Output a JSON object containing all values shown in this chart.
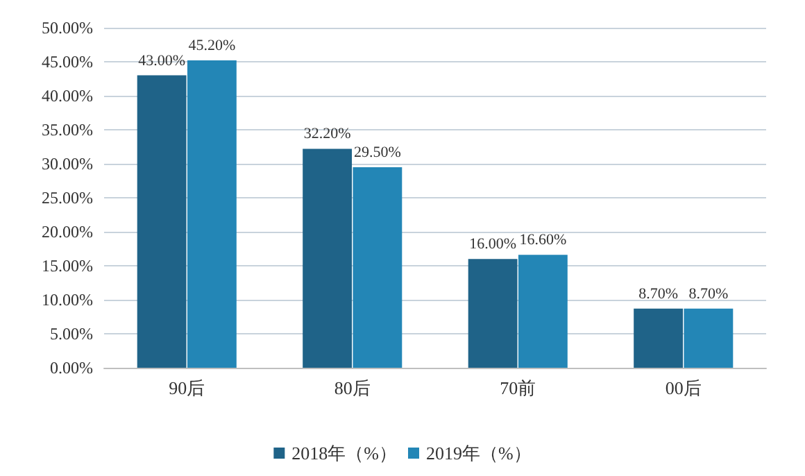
{
  "chart_data": {
    "type": "bar",
    "categories": [
      "90后",
      "80后",
      "70前",
      "00后"
    ],
    "series": [
      {
        "name": "2018年（%）",
        "color": "#1f6388",
        "values": [
          43.0,
          32.2,
          16.0,
          8.7
        ],
        "value_labels": [
          "43.00%",
          "32.20%",
          "16.00%",
          "8.70%"
        ]
      },
      {
        "name": "2019年（%）",
        "color": "#2386b6",
        "values": [
          45.2,
          29.5,
          16.6,
          8.7
        ],
        "value_labels": [
          "45.20%",
          "29.50%",
          "16.60%",
          "8.70%"
        ]
      }
    ],
    "ylim": [
      0,
      50
    ],
    "yticks": [
      {
        "value": 0,
        "label": "0.00%"
      },
      {
        "value": 5,
        "label": "5.00%"
      },
      {
        "value": 10,
        "label": "10.00%"
      },
      {
        "value": 15,
        "label": "15.00%"
      },
      {
        "value": 20,
        "label": "20.00%"
      },
      {
        "value": 25,
        "label": "25.00%"
      },
      {
        "value": 30,
        "label": "30.00%"
      },
      {
        "value": 35,
        "label": "35.00%"
      },
      {
        "value": 40,
        "label": "40.00%"
      },
      {
        "value": 45,
        "label": "45.00%"
      },
      {
        "value": 50,
        "label": "50.00%"
      }
    ],
    "grid": "y",
    "legend": "bottom"
  }
}
